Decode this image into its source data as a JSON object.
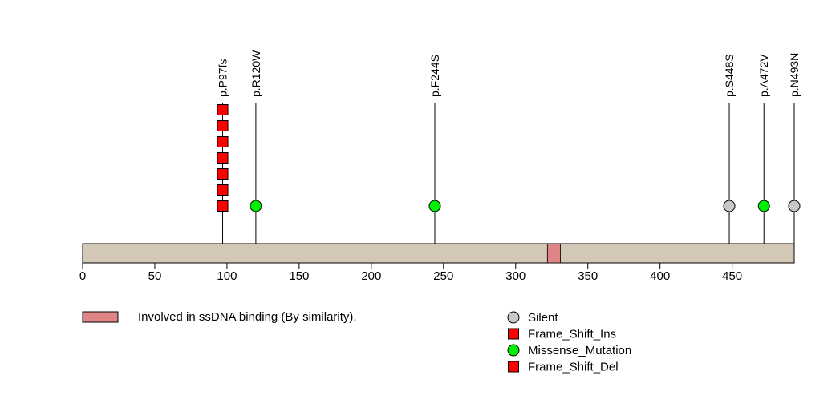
{
  "chart_data": {
    "type": "lollipop",
    "title": "",
    "xlabel": "",
    "ylabel": "",
    "xlim": [
      0,
      493
    ],
    "x_ticks": [
      0,
      50,
      100,
      150,
      200,
      250,
      300,
      350,
      400,
      450
    ],
    "protein_length": 493,
    "bar_color": "#d3c7b5",
    "mutations": [
      {
        "label": "p.P97fs",
        "position": 97,
        "type": "Frame_Shift_Ins",
        "shape": "square",
        "color": "#ff0000",
        "count": 7
      },
      {
        "label": "p.R120W",
        "position": 120,
        "type": "Missense_Mutation",
        "shape": "circle",
        "color": "#00ee00",
        "count": 1
      },
      {
        "label": "p.F244S",
        "position": 244,
        "type": "Missense_Mutation",
        "shape": "circle",
        "color": "#00ee00",
        "count": 1
      },
      {
        "label": "p.S448S",
        "position": 448,
        "type": "Silent",
        "shape": "circle",
        "color": "#c8c8c8",
        "count": 1
      },
      {
        "label": "p.A472V",
        "position": 472,
        "type": "Missense_Mutation",
        "shape": "circle",
        "color": "#00ee00",
        "count": 1
      },
      {
        "label": "p.N493N",
        "position": 493,
        "type": "Silent",
        "shape": "circle",
        "color": "#c8c8c8",
        "count": 1
      }
    ],
    "domains": [
      {
        "label": "Involved in ssDNA binding (By similarity).",
        "start": 322,
        "end": 331,
        "color": "#e08585"
      }
    ],
    "legend_left": {
      "swatch_color": "#e08585",
      "label": "Involved in ssDNA binding (By similarity)."
    },
    "legend_right": [
      {
        "label": "Silent",
        "shape": "circle",
        "color": "#c8c8c8"
      },
      {
        "label": "Frame_Shift_Ins",
        "shape": "square",
        "color": "#ff0000"
      },
      {
        "label": "Missense_Mutation",
        "shape": "circle",
        "color": "#00ee00"
      },
      {
        "label": "Frame_Shift_Del",
        "shape": "square",
        "color": "#ff0000"
      }
    ]
  }
}
